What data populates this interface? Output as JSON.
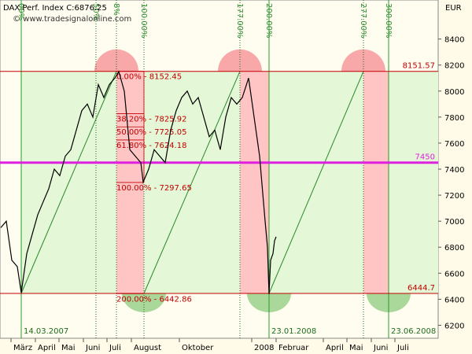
{
  "chart_data": {
    "type": "line",
    "title": "DAX Perf. Index C:6876.25",
    "subtitle": "© www.tradesignalonline.com",
    "y_axis_label": "EUR",
    "x": [
      "2007-02-16",
      "2007-02-23",
      "2007-03-02",
      "2007-03-09",
      "2007-03-14",
      "2007-03-21",
      "2007-03-28",
      "2007-04-04",
      "2007-04-11",
      "2007-04-18",
      "2007-04-25",
      "2007-05-02",
      "2007-05-09",
      "2007-05-16",
      "2007-05-23",
      "2007-05-30",
      "2007-06-06",
      "2007-06-13",
      "2007-06-20",
      "2007-06-27",
      "2007-07-04",
      "2007-07-11",
      "2007-07-16",
      "2007-07-23",
      "2007-07-30",
      "2007-08-06",
      "2007-08-13",
      "2007-08-16",
      "2007-08-23",
      "2007-08-30",
      "2007-09-06",
      "2007-09-13",
      "2007-09-20",
      "2007-09-27",
      "2007-10-04",
      "2007-10-11",
      "2007-10-18",
      "2007-10-25",
      "2007-11-01",
      "2007-11-08",
      "2007-11-15",
      "2007-11-22",
      "2007-11-29",
      "2007-12-06",
      "2007-12-13",
      "2007-12-20",
      "2007-12-28",
      "2008-01-04",
      "2008-01-11",
      "2008-01-18",
      "2008-01-21",
      "2008-01-23",
      "2008-01-25",
      "2008-01-28",
      "2008-01-30",
      "2008-02-01"
    ],
    "series": [
      {
        "name": "DAX Perf. Index",
        "color": "#000000",
        "values": [
          6950,
          7000,
          6700,
          6650,
          6450,
          6750,
          6900,
          7050,
          7150,
          7250,
          7400,
          7350,
          7500,
          7550,
          7700,
          7850,
          7900,
          7800,
          8050,
          7950,
          8050,
          8100,
          8150,
          8000,
          7550,
          7500,
          7450,
          7300,
          7400,
          7550,
          7500,
          7450,
          7700,
          7850,
          7950,
          8000,
          7900,
          7950,
          7800,
          7650,
          7700,
          7550,
          7800,
          7950,
          7900,
          7950,
          8100,
          7800,
          7500,
          7000,
          6800,
          6440,
          6700,
          6750,
          6850,
          6880
        ]
      }
    ],
    "xlim": [
      "2007-02-15",
      "2008-08-25"
    ],
    "xticks": [
      {
        "value": "2007-03-01",
        "label": "März"
      },
      {
        "value": "2007-04-01",
        "label": "April"
      },
      {
        "value": "2007-05-01",
        "label": "Mai"
      },
      {
        "value": "2007-06-01",
        "label": "Juni"
      },
      {
        "value": "2007-07-01",
        "label": "Juli"
      },
      {
        "value": "2007-08-01",
        "label": "August"
      },
      {
        "value": "2007-10-01",
        "label": "Oktober"
      },
      {
        "value": "2008-01-01",
        "label": "2008"
      },
      {
        "value": "2008-02-01",
        "label": "Februar"
      },
      {
        "value": "2008-04-01",
        "label": "April"
      },
      {
        "value": "2008-05-01",
        "label": "Mai"
      },
      {
        "value": "2008-06-01",
        "label": "Juni"
      },
      {
        "value": "2008-07-01",
        "label": "Juli"
      }
    ],
    "ylim": [
      6100,
      8700
    ],
    "yticks": [
      6200,
      6400,
      6600,
      6800,
      7000,
      7200,
      7400,
      7600,
      7800,
      8000,
      8200,
      8400
    ],
    "levels": [
      {
        "value": 8151.57,
        "color": "#c00000"
      },
      {
        "value": 7450,
        "color": "#e020e0"
      },
      {
        "value": 6444.7,
        "color": "#c00000"
      }
    ],
    "fibonacci": [
      {
        "value": 8152.45,
        "label": "0.00% - 8152.45"
      },
      {
        "value": 7825.92,
        "label": "38.20% - 7825.92"
      },
      {
        "value": 7725.05,
        "label": "50.00% - 7725.05"
      },
      {
        "value": 7624.18,
        "label": "61.80% - 7624.18"
      },
      {
        "value": 7297.65,
        "label": "100.00% - 7297.65"
      },
      {
        "value": 6442.86,
        "label": "200.00% - 6442.86"
      }
    ],
    "date_markers": [
      {
        "date": "2007-03-14",
        "label": "14.03.2007"
      },
      {
        "date": "2008-01-23",
        "label": "23.01.2008"
      },
      {
        "date": "2008-06-23",
        "label": "23.06.2008"
      }
    ],
    "time_cycles": [
      {
        "date": "2007-03-14",
        "label": "00%"
      },
      {
        "date": "2007-06-17",
        "label": "50%"
      },
      {
        "date": "2007-07-13",
        "label": "8%"
      },
      {
        "date": "2007-08-17",
        "label": "100.00%"
      },
      {
        "date": "2007-12-17",
        "label": "177.00%"
      },
      {
        "date": "2008-01-23",
        "label": "200.00%"
      },
      {
        "date": "2008-05-22",
        "label": "277.00%"
      },
      {
        "date": "2008-06-23",
        "label": "300.00%"
      }
    ]
  }
}
